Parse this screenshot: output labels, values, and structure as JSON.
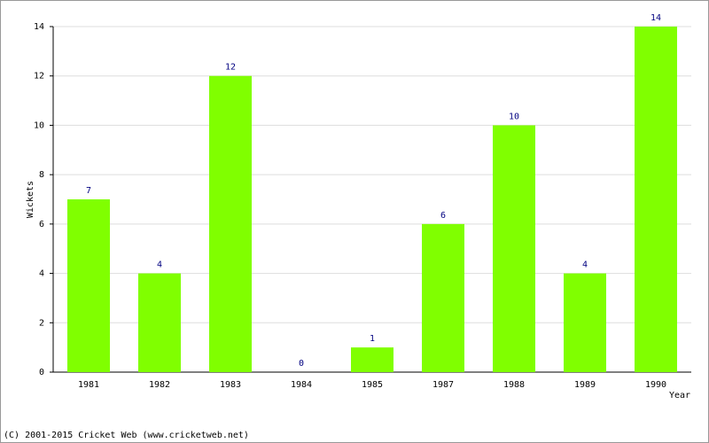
{
  "chart_data": {
    "type": "bar",
    "categories": [
      "1981",
      "1982",
      "1983",
      "1984",
      "1985",
      "1987",
      "1988",
      "1989",
      "1990"
    ],
    "values": [
      7,
      4,
      12,
      0,
      1,
      6,
      10,
      4,
      14
    ],
    "color": "#80ff00",
    "ylim": [
      0,
      14
    ],
    "yticks": [
      0,
      2,
      4,
      6,
      8,
      10,
      12,
      14
    ],
    "grid": true,
    "y_label": "Wickets",
    "x_label": "Year",
    "footer": "(C) 2001-2015 Cricket Web (www.cricketweb.net)"
  }
}
